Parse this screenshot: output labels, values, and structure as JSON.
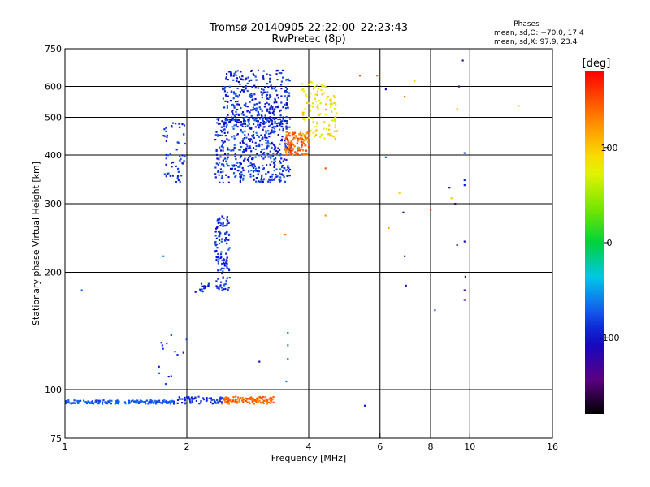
{
  "chart_data": {
    "type": "scatter",
    "title": "Tromsø 20140905 22:22:00–22:23:43",
    "subtitle": "RwPretec (8p)",
    "xlabel": "Frequency [MHz]",
    "ylabel": "Stationary phase Virtual Height [km]",
    "x_scale": "log",
    "y_scale": "log",
    "xlim": [
      1,
      16
    ],
    "ylim": [
      75,
      750
    ],
    "x_ticks": [
      1,
      2,
      4,
      6,
      8,
      10,
      16
    ],
    "y_ticks": [
      75,
      100,
      200,
      300,
      400,
      500,
      600,
      750
    ],
    "x_grid": [
      2,
      4,
      6,
      8,
      10
    ],
    "y_grid": [
      100,
      200,
      300,
      400,
      500,
      600
    ],
    "stats": {
      "heading": "Phases",
      "line1": "mean, sd,O: −70.0, 17.4",
      "line2": "mean, sd,X:  97.9, 23.4"
    },
    "colorbar": {
      "label": "[deg]",
      "range": [
        -180,
        180
      ],
      "ticks": [
        100,
        0,
        -100
      ]
    },
    "clusters": [
      {
        "x": [
          1.0,
          1.85
        ],
        "y": [
          92,
          94
        ],
        "n": 170,
        "phase": [
          -85,
          -60
        ]
      },
      {
        "x": [
          1.85,
          2.5
        ],
        "y": [
          92,
          96
        ],
        "n": 70,
        "phase": [
          -100,
          -75
        ]
      },
      {
        "x": [
          2.45,
          3.3
        ],
        "y": [
          92,
          96
        ],
        "n": 110,
        "phase": [
          125,
          155
        ]
      },
      {
        "x": [
          2.35,
          2.55
        ],
        "y": [
          180,
          280
        ],
        "n": 130,
        "phase": [
          -105,
          -70
        ]
      },
      {
        "x": [
          2.1,
          2.3
        ],
        "y": [
          178,
          188
        ],
        "n": 14,
        "phase": [
          -110,
          -80
        ]
      },
      {
        "x": [
          1.75,
          1.98
        ],
        "y": [
          340,
          490
        ],
        "n": 55,
        "phase": [
          -100,
          -70
        ]
      },
      {
        "x": [
          2.35,
          3.6
        ],
        "y": [
          340,
          500
        ],
        "n": 500,
        "phase": [
          -110,
          -65
        ]
      },
      {
        "x": [
          2.45,
          3.6
        ],
        "y": [
          480,
          660
        ],
        "n": 300,
        "phase": [
          -110,
          -70
        ]
      },
      {
        "x": [
          3.5,
          4.0
        ],
        "y": [
          400,
          460
        ],
        "n": 120,
        "phase": [
          120,
          165
        ]
      },
      {
        "x": [
          3.85,
          4.7
        ],
        "y": [
          440,
          620
        ],
        "n": 110,
        "phase": [
          60,
          110
        ]
      },
      {
        "x": [
          1.7,
          2.0
        ],
        "y": [
          100,
          140
        ],
        "n": 14,
        "phase": [
          -110,
          -75
        ]
      }
    ],
    "points": [
      {
        "x": 1.1,
        "y": 180,
        "phase": -70
      },
      {
        "x": 1.75,
        "y": 220,
        "phase": -50
      },
      {
        "x": 3.5,
        "y": 250,
        "phase": 140
      },
      {
        "x": 3.55,
        "y": 140,
        "phase": -60
      },
      {
        "x": 3.55,
        "y": 130,
        "phase": -55
      },
      {
        "x": 3.55,
        "y": 120,
        "phase": -58
      },
      {
        "x": 3.52,
        "y": 105,
        "phase": -62
      },
      {
        "x": 3.02,
        "y": 118,
        "phase": -110
      },
      {
        "x": 4.4,
        "y": 280,
        "phase": 120
      },
      {
        "x": 4.4,
        "y": 370,
        "phase": 150
      },
      {
        "x": 5.5,
        "y": 91,
        "phase": -95
      },
      {
        "x": 5.35,
        "y": 640,
        "phase": 150
      },
      {
        "x": 5.9,
        "y": 640,
        "phase": 140
      },
      {
        "x": 6.2,
        "y": 590,
        "phase": -110
      },
      {
        "x": 6.2,
        "y": 395,
        "phase": -70
      },
      {
        "x": 6.3,
        "y": 260,
        "phase": 120
      },
      {
        "x": 6.7,
        "y": 320,
        "phase": 95
      },
      {
        "x": 6.85,
        "y": 285,
        "phase": -120
      },
      {
        "x": 6.9,
        "y": 565,
        "phase": 140
      },
      {
        "x": 6.9,
        "y": 220,
        "phase": -90
      },
      {
        "x": 6.95,
        "y": 185,
        "phase": -125
      },
      {
        "x": 7.3,
        "y": 620,
        "phase": 100
      },
      {
        "x": 8.0,
        "y": 290,
        "phase": 170
      },
      {
        "x": 8.2,
        "y": 160,
        "phase": -75
      },
      {
        "x": 8.9,
        "y": 330,
        "phase": -120
      },
      {
        "x": 9.0,
        "y": 310,
        "phase": 100
      },
      {
        "x": 9.2,
        "y": 300,
        "phase": -150
      },
      {
        "x": 9.3,
        "y": 235,
        "phase": -90
      },
      {
        "x": 9.3,
        "y": 525,
        "phase": 110
      },
      {
        "x": 9.4,
        "y": 600,
        "phase": -140
      },
      {
        "x": 9.6,
        "y": 700,
        "phase": -130
      },
      {
        "x": 9.7,
        "y": 405,
        "phase": -75
      },
      {
        "x": 9.7,
        "y": 345,
        "phase": -90
      },
      {
        "x": 9.7,
        "y": 335,
        "phase": -95
      },
      {
        "x": 9.7,
        "y": 240,
        "phase": -110
      },
      {
        "x": 9.75,
        "y": 195,
        "phase": -115
      },
      {
        "x": 9.7,
        "y": 180,
        "phase": -125
      },
      {
        "x": 9.7,
        "y": 170,
        "phase": -130
      },
      {
        "x": 13.2,
        "y": 535,
        "phase": 95
      }
    ]
  }
}
